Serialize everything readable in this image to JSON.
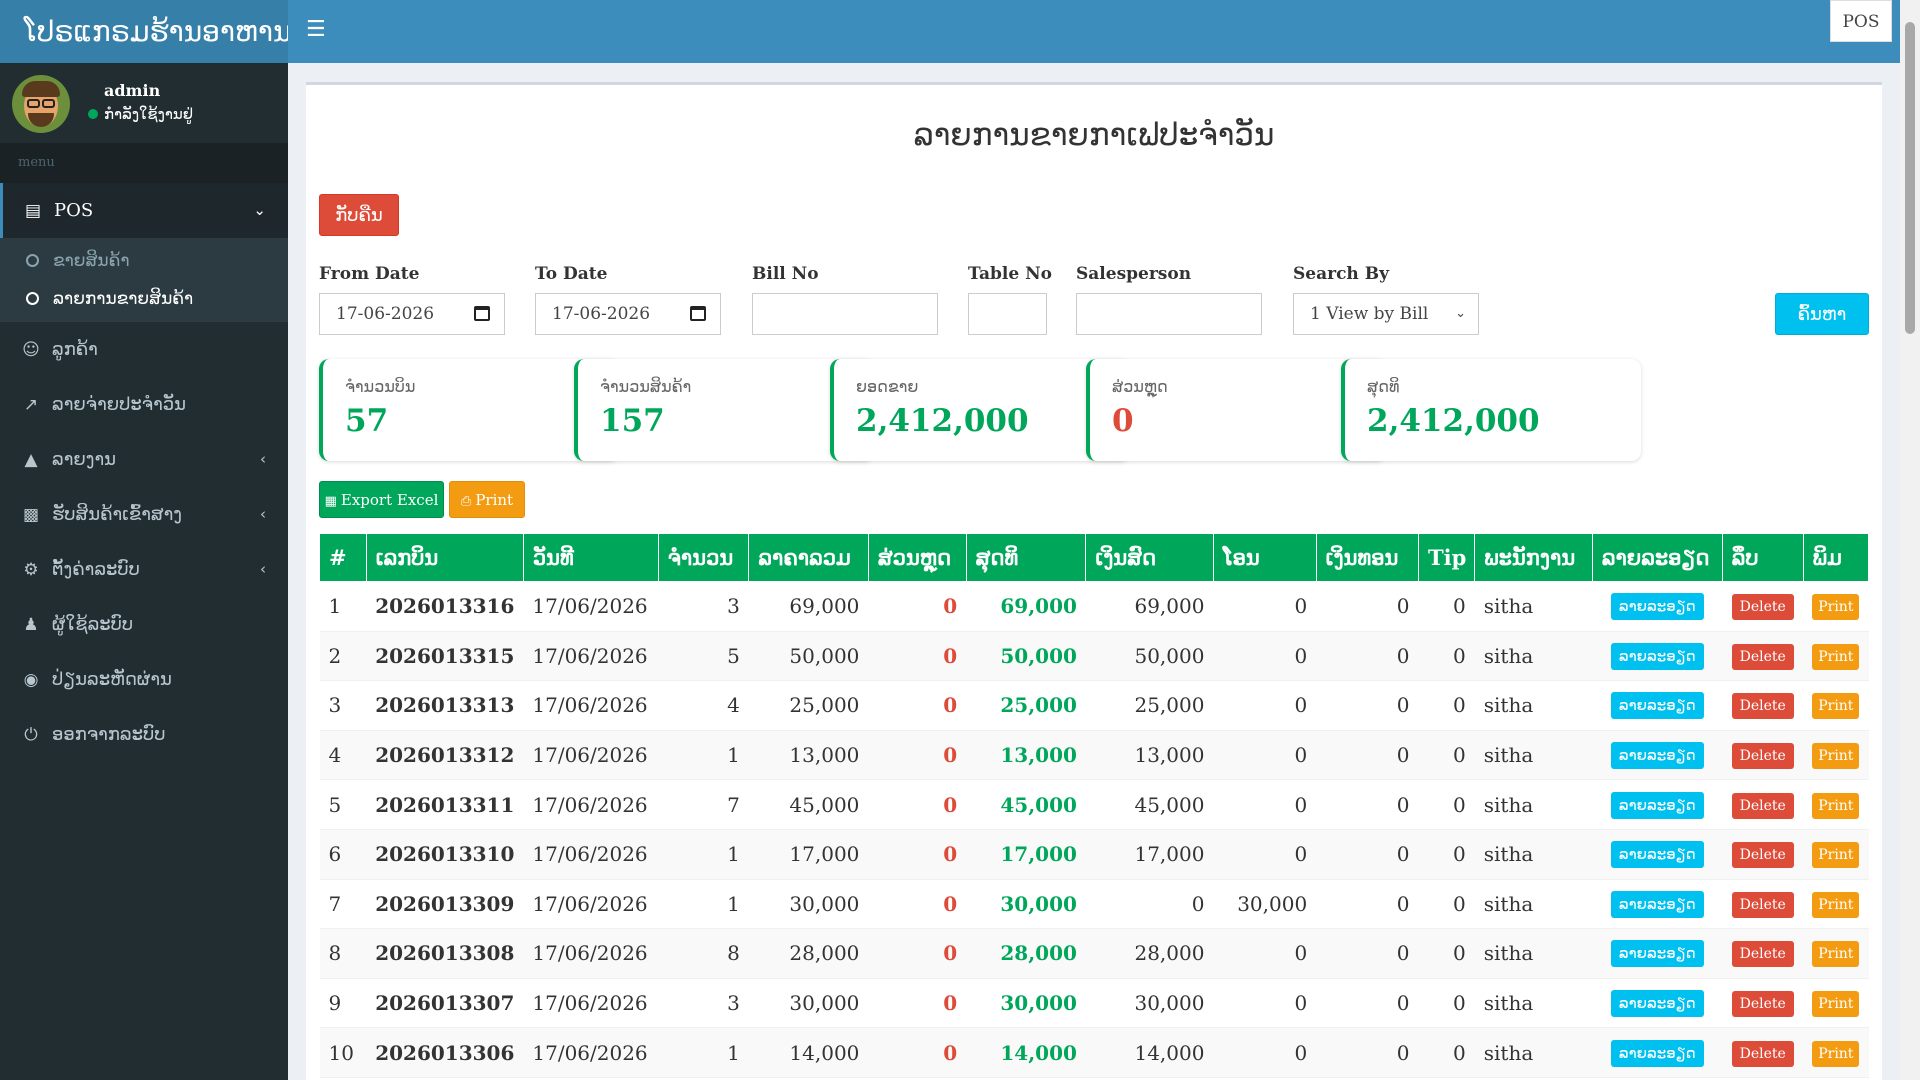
{
  "app": {
    "brand": "ໂປຣແກຣມຮ້ານອາຫານ",
    "pos_button": "POS"
  },
  "user": {
    "name": "admin",
    "status": "ກຳລັງໃຊ້ງານຢູ່"
  },
  "sidebar": {
    "menu_header": "menu",
    "pos": {
      "label": "POS",
      "icon": "money-icon"
    },
    "pos_sub": [
      {
        "label": "ຂາຍສິນຄ້າ"
      },
      {
        "label": "ລາຍການຂາຍສິນຄ້າ"
      }
    ],
    "items": [
      {
        "label": "ລູກຄ້າ",
        "icon": "user-circle-icon"
      },
      {
        "label": "ລາຍຈ່າຍປະຈຳວັນ",
        "icon": "share-square-icon"
      },
      {
        "label": "ລາຍງານ",
        "icon": "area-chart-icon"
      },
      {
        "label": "ຮັບສິນຄ້າເຂົ້າສາງ",
        "icon": "cubes-icon"
      },
      {
        "label": "ຕັ້ງຄ່າລະບົບ",
        "icon": "cog-icon"
      },
      {
        "label": "ຜູ້ໃຊ້ລະບົບ",
        "icon": "user-icon"
      },
      {
        "label": "ປ່ຽນລະຫັດຜ່ານ",
        "icon": "lock-icon"
      },
      {
        "label": "ອອກຈາກລະບົບ",
        "icon": "power-icon"
      }
    ]
  },
  "page": {
    "title": "ລາຍການຂາຍກາເຟປະຈຳວັນ",
    "back_button": "ກັບຄືນ"
  },
  "filters": {
    "from_date_label": "From Date",
    "from_date_value": "17-06-2026",
    "to_date_label": "To Date",
    "to_date_value": "17-06-2026",
    "bill_no_label": "Bill No",
    "bill_no_value": "",
    "table_no_label": "Table No",
    "table_no_value": "",
    "salesperson_label": "Salesperson",
    "salesperson_value": "",
    "search_by_label": "Search By",
    "search_by_value": "1 View by Bill",
    "search_button": "ຄົ້ນຫາ"
  },
  "stats": [
    {
      "label": "ຈຳນວນບິນ",
      "value": "57"
    },
    {
      "label": "ຈຳນວນສິນຄ້າ",
      "value": "157"
    },
    {
      "label": "ຍອດຂາຍ",
      "value": "2,412,000"
    },
    {
      "label": "ສ່ວນຫຼຸດ",
      "value": "0"
    },
    {
      "label": "ສຸດທິ",
      "value": "2,412,000"
    }
  ],
  "actions": {
    "export_excel": "Export Excel",
    "print": "Print"
  },
  "table": {
    "headers": [
      "#",
      "ເລກບິນ",
      "ວັນທີ",
      "ຈຳນວນ",
      "ລາຄາລວມ",
      "ສ່ວນຫຼຸດ",
      "ສຸດທິ",
      "ເງິນສົດ",
      "ໂອນ",
      "ເງິນທອນ",
      "Tip",
      "ພະນັກງານ",
      "ລາຍລະອຽດ",
      "ລຶບ",
      "ພິມ"
    ],
    "detail_label": "ລາຍລະອຽດ",
    "delete_label": "Delete",
    "print_label": "Print",
    "rows": [
      {
        "no": "1",
        "bill": "2026013316",
        "date": "17/06/2026",
        "qty": "3",
        "total": "69,000",
        "discount": "0",
        "net": "69,000",
        "cash": "69,000",
        "transfer": "0",
        "change": "0",
        "tip": "0",
        "staff": "sitha"
      },
      {
        "no": "2",
        "bill": "2026013315",
        "date": "17/06/2026",
        "qty": "5",
        "total": "50,000",
        "discount": "0",
        "net": "50,000",
        "cash": "50,000",
        "transfer": "0",
        "change": "0",
        "tip": "0",
        "staff": "sitha"
      },
      {
        "no": "3",
        "bill": "2026013313",
        "date": "17/06/2026",
        "qty": "4",
        "total": "25,000",
        "discount": "0",
        "net": "25,000",
        "cash": "25,000",
        "transfer": "0",
        "change": "0",
        "tip": "0",
        "staff": "sitha"
      },
      {
        "no": "4",
        "bill": "2026013312",
        "date": "17/06/2026",
        "qty": "1",
        "total": "13,000",
        "discount": "0",
        "net": "13,000",
        "cash": "13,000",
        "transfer": "0",
        "change": "0",
        "tip": "0",
        "staff": "sitha"
      },
      {
        "no": "5",
        "bill": "2026013311",
        "date": "17/06/2026",
        "qty": "7",
        "total": "45,000",
        "discount": "0",
        "net": "45,000",
        "cash": "45,000",
        "transfer": "0",
        "change": "0",
        "tip": "0",
        "staff": "sitha"
      },
      {
        "no": "6",
        "bill": "2026013310",
        "date": "17/06/2026",
        "qty": "1",
        "total": "17,000",
        "discount": "0",
        "net": "17,000",
        "cash": "17,000",
        "transfer": "0",
        "change": "0",
        "tip": "0",
        "staff": "sitha"
      },
      {
        "no": "7",
        "bill": "2026013309",
        "date": "17/06/2026",
        "qty": "1",
        "total": "30,000",
        "discount": "0",
        "net": "30,000",
        "cash": "0",
        "transfer": "30,000",
        "change": "0",
        "tip": "0",
        "staff": "sitha"
      },
      {
        "no": "8",
        "bill": "2026013308",
        "date": "17/06/2026",
        "qty": "8",
        "total": "28,000",
        "discount": "0",
        "net": "28,000",
        "cash": "28,000",
        "transfer": "0",
        "change": "0",
        "tip": "0",
        "staff": "sitha"
      },
      {
        "no": "9",
        "bill": "2026013307",
        "date": "17/06/2026",
        "qty": "3",
        "total": "30,000",
        "discount": "0",
        "net": "30,000",
        "cash": "30,000",
        "transfer": "0",
        "change": "0",
        "tip": "0",
        "staff": "sitha"
      },
      {
        "no": "10",
        "bill": "2026013306",
        "date": "17/06/2026",
        "qty": "1",
        "total": "14,000",
        "discount": "0",
        "net": "14,000",
        "cash": "14,000",
        "transfer": "0",
        "change": "0",
        "tip": "0",
        "staff": "sitha"
      }
    ]
  },
  "colors": {
    "header_blue": "#3c8dbc",
    "sidebar_dark": "#222d32",
    "table_header_green": "#00a65a",
    "danger_red": "#dd4b39",
    "info_cyan": "#00c0ef",
    "warning_orange": "#f39c12"
  }
}
